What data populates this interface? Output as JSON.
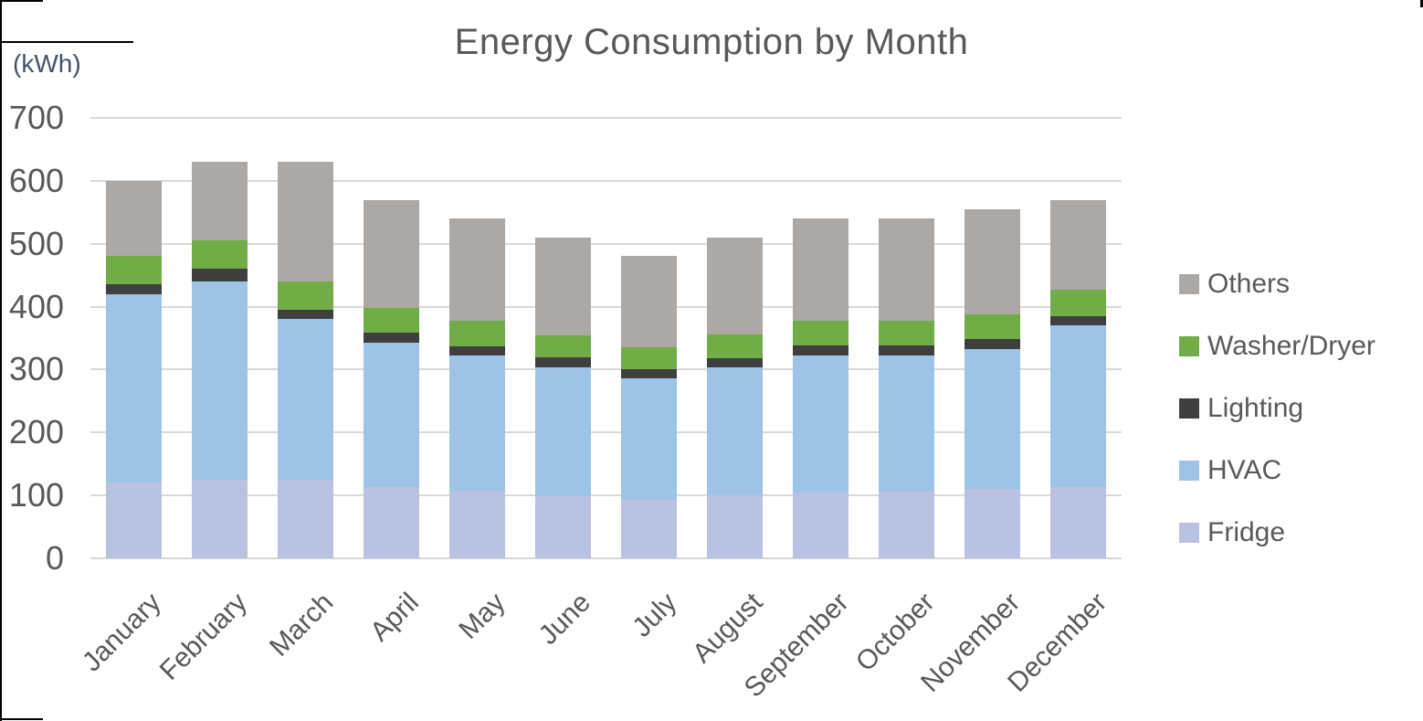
{
  "chart_data": {
    "type": "bar",
    "subtype": "stacked-vertical",
    "title": "Energy Consumption by Month",
    "unit_label": "(kWh)",
    "xlabel": "",
    "ylabel": "kWh",
    "ylim": [
      0,
      700
    ],
    "ytick_step": 100,
    "yticks": [
      0,
      100,
      200,
      300,
      400,
      500,
      600,
      700
    ],
    "grid": "horizontal",
    "legend_position": "right",
    "categories": [
      "January",
      "February",
      "March",
      "April",
      "May",
      "June",
      "July",
      "August",
      "September",
      "October",
      "November",
      "December"
    ],
    "series": [
      {
        "name": "Fridge",
        "color": "#BAC2E1",
        "values": [
          120,
          125,
          125,
          113,
          107,
          99,
          93,
          100,
          104,
          106,
          110,
          113
        ]
      },
      {
        "name": "HVAC",
        "color": "#9DC3E6",
        "values": [
          300,
          315,
          255,
          230,
          215,
          205,
          193,
          203,
          218,
          216,
          222,
          257
        ]
      },
      {
        "name": "Lighting",
        "color": "#3F3F3F",
        "values": [
          15,
          20,
          15,
          15,
          15,
          15,
          15,
          15,
          16,
          17,
          16,
          15
        ]
      },
      {
        "name": "Washer/Dryer",
        "color": "#70AD47",
        "values": [
          45,
          45,
          45,
          40,
          40,
          36,
          34,
          38,
          39,
          38,
          40,
          42
        ]
      },
      {
        "name": "Others",
        "color": "#ABA8A6",
        "values": [
          120,
          125,
          190,
          172,
          163,
          155,
          145,
          154,
          163,
          163,
          167,
          143
        ]
      }
    ],
    "stack_totals": [
      600,
      630,
      630,
      570,
      540,
      510,
      480,
      510,
      540,
      540,
      555,
      570
    ],
    "legend_order": [
      "Others",
      "Washer/Dryer",
      "Lighting",
      "HVAC",
      "Fridge"
    ],
    "text_color": "#595959",
    "gridline_color": "#D9D9D9"
  }
}
